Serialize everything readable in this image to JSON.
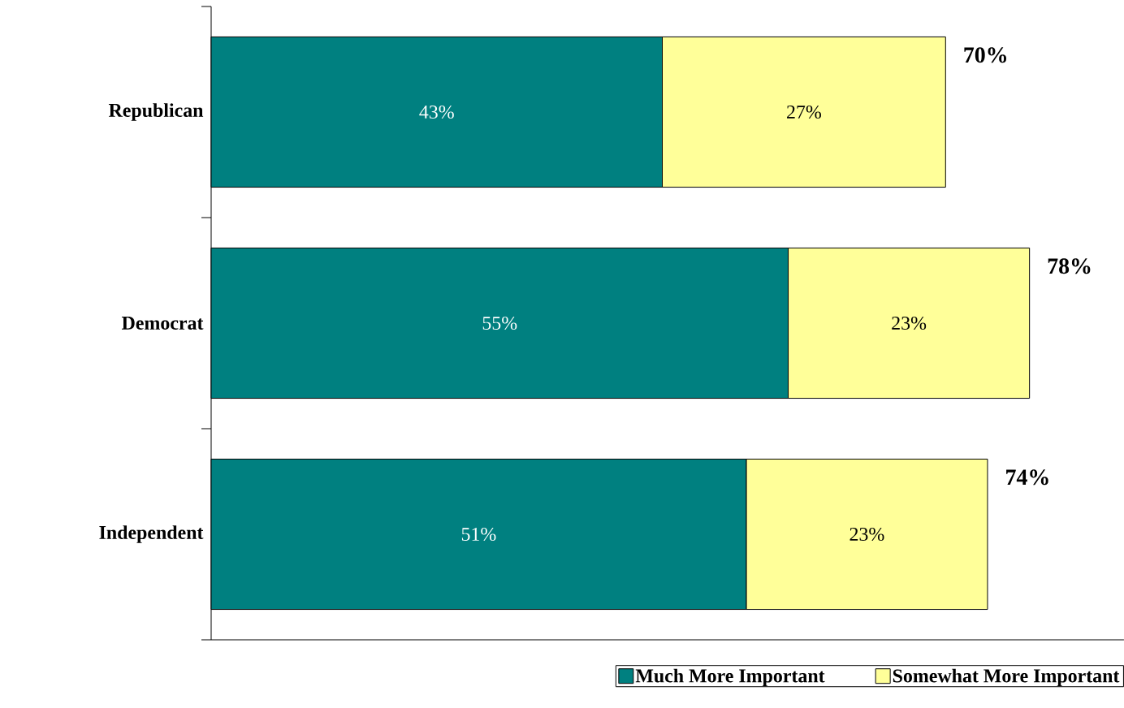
{
  "chart_data": {
    "type": "bar",
    "orientation": "horizontal",
    "stacked": true,
    "categories": [
      "Republican",
      "Democrat",
      "Independent"
    ],
    "series": [
      {
        "name": "Much More Important",
        "color": "#008080",
        "values": [
          43,
          55,
          51
        ],
        "value_labels": [
          "43%",
          "55%",
          "51%"
        ]
      },
      {
        "name": "Somewhat More Important",
        "color": "#ffff99",
        "values": [
          27,
          23,
          23
        ],
        "value_labels": [
          "27%",
          "23%",
          "23%"
        ]
      }
    ],
    "totals": [
      "70%",
      "78%",
      "74%"
    ],
    "xlim": [
      0,
      87
    ],
    "legend": "bottom"
  }
}
